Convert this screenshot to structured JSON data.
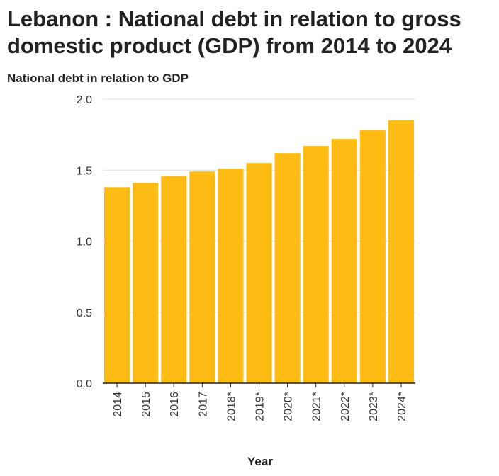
{
  "chart_data": {
    "type": "bar",
    "title": "Lebanon : National debt in relation to gross domestic product (GDP) from 2014 to 2024",
    "ylabel": "National debt in relation to GDP",
    "xlabel": "Year",
    "categories": [
      "2014",
      "2015",
      "2016",
      "2017",
      "2018*",
      "2019*",
      "2020*",
      "2021*",
      "2022*",
      "2023*",
      "2024*"
    ],
    "values": [
      1.38,
      1.41,
      1.46,
      1.49,
      1.51,
      1.55,
      1.62,
      1.67,
      1.72,
      1.78,
      1.85
    ],
    "ylim": [
      0,
      2.0
    ],
    "yticks": [
      "0.0",
      "0.5",
      "1.0",
      "1.5",
      "2.0"
    ],
    "grid": true,
    "bar_color": "#FDBB13",
    "grid_color": "#e0e0e0"
  }
}
